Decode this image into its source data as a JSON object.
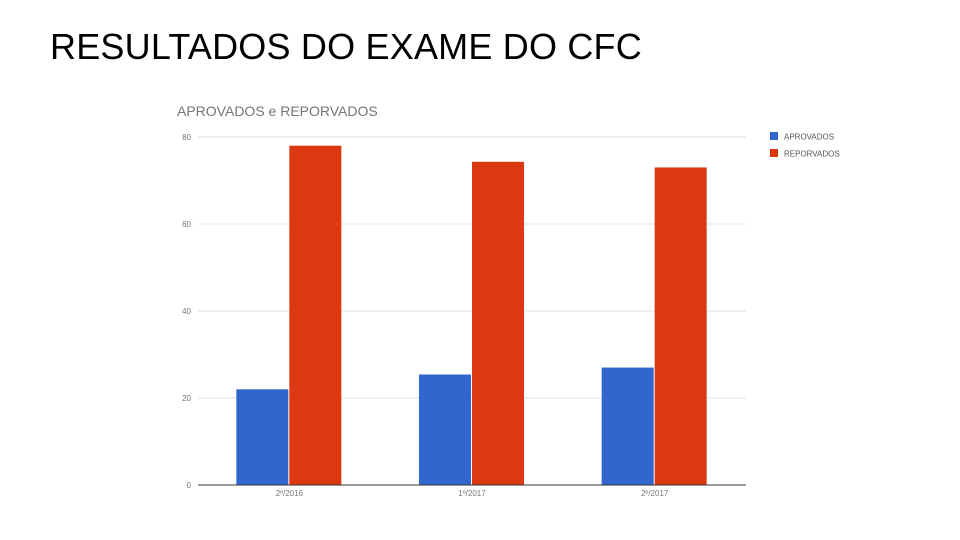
{
  "slide": {
    "title": "RESULTADOS DO EXAME DO CFC"
  },
  "chart_data": {
    "type": "bar",
    "title": "APROVADOS e REPORVADOS",
    "xlabel": "",
    "ylabel": "",
    "categories": [
      "2º/2016",
      "1º/2017",
      "2º/2017"
    ],
    "series": [
      {
        "name": "APROVADOS",
        "color": "#3366cc",
        "values": [
          22,
          25.4,
          27
        ]
      },
      {
        "name": "REPORVADOS",
        "color": "#dc3912",
        "values": [
          78,
          74.3,
          73
        ]
      }
    ],
    "ylim": [
      0,
      80
    ],
    "yticks": [
      0,
      20,
      40,
      60,
      80
    ],
    "grid": true,
    "legend": "top-right"
  }
}
